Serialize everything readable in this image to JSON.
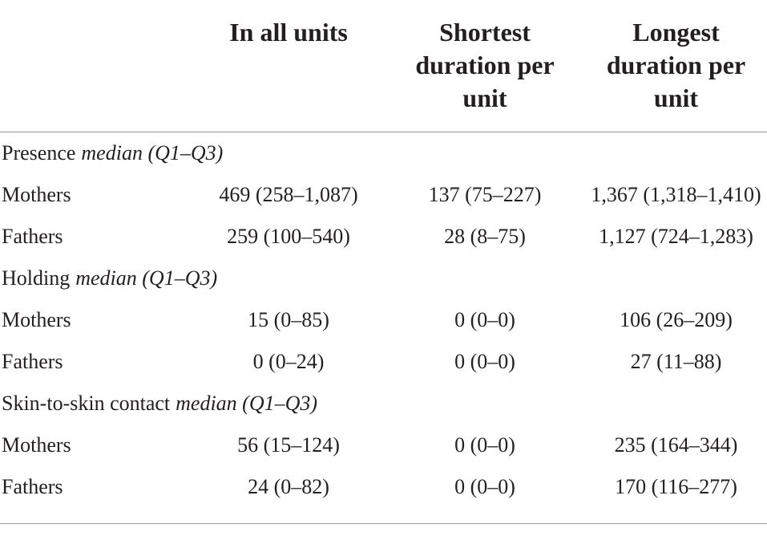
{
  "table": {
    "columns": [
      "In all units",
      "Shortest duration per unit",
      "Longest duration per unit"
    ],
    "sections": [
      {
        "label": "Presence",
        "label_note": "median (Q1–Q3)",
        "rows": [
          [
            "Mothers",
            "469 (258–1,087)",
            "137 (75–227)",
            "1,367 (1,318–1,410)"
          ],
          [
            "Fathers",
            "259 (100–540)",
            "28 (8–75)",
            "1,127 (724–1,283)"
          ]
        ]
      },
      {
        "label": "Holding",
        "label_note": "median (Q1–Q3)",
        "rows": [
          [
            "Mothers",
            "15 (0–85)",
            "0 (0–0)",
            "106 (26–209)"
          ],
          [
            "Fathers",
            "0 (0–24)",
            "0 (0–0)",
            "27 (11–88)"
          ]
        ]
      },
      {
        "label": "Skin-to-skin contact",
        "label_note": "median (Q1–Q3)",
        "rows": [
          [
            "Mothers",
            "56 (15–124)",
            "0 (0–0)",
            "235 (164–344)"
          ],
          [
            "Fathers",
            "24 (0–82)",
            "0 (0–0)",
            "170 (116–277)"
          ]
        ]
      }
    ]
  }
}
